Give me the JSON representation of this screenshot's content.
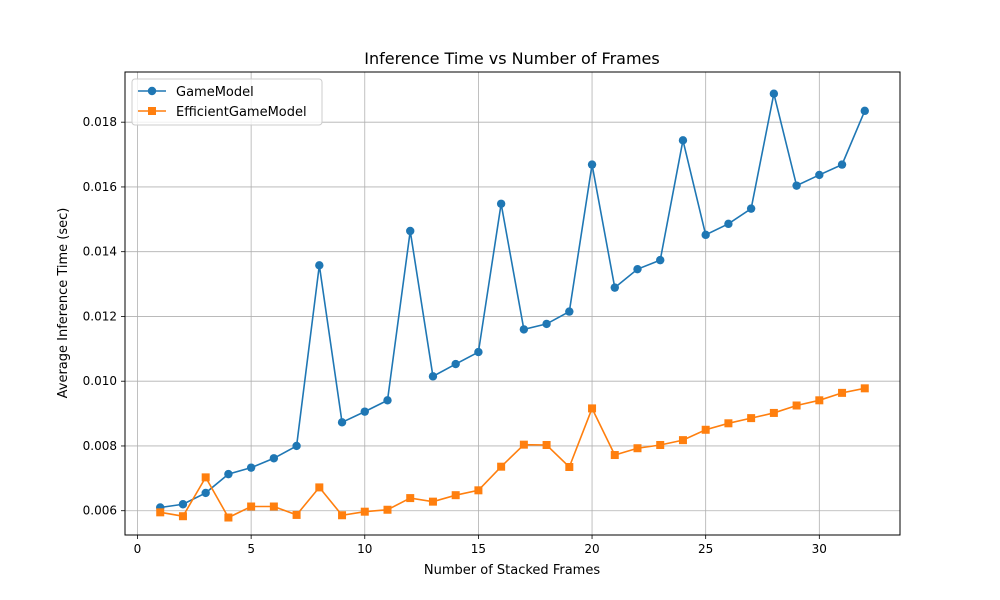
{
  "chart_data": {
    "type": "line",
    "title": "Inference Time vs Number of Frames",
    "xlabel": "Number of Stacked Frames",
    "ylabel": "Average Inference Time (sec)",
    "xlim": [
      -0.55,
      33.55
    ],
    "ylim": [
      0.00525,
      0.01955
    ],
    "xticks": [
      0,
      5,
      10,
      15,
      20,
      25,
      30
    ],
    "xtick_labels": [
      "0",
      "5",
      "10",
      "15",
      "20",
      "25",
      "30"
    ],
    "yticks": [
      0.006,
      0.008,
      0.01,
      0.012,
      0.014,
      0.016,
      0.018
    ],
    "ytick_labels": [
      "0.006",
      "0.008",
      "0.010",
      "0.012",
      "0.014",
      "0.016",
      "0.018"
    ],
    "grid": true,
    "legend_position": "top-left",
    "x": [
      1,
      2,
      3,
      4,
      5,
      6,
      7,
      8,
      9,
      10,
      11,
      12,
      13,
      14,
      15,
      16,
      17,
      18,
      19,
      20,
      21,
      22,
      23,
      24,
      25,
      26,
      27,
      28,
      29,
      30,
      31,
      32
    ],
    "series": [
      {
        "name": "GameModel",
        "color": "#1f77b4",
        "marker": "circle",
        "values": [
          0.0061,
          0.0062,
          0.00655,
          0.00713,
          0.00733,
          0.00762,
          0.008,
          0.01358,
          0.00873,
          0.00906,
          0.00941,
          0.01464,
          0.01015,
          0.01053,
          0.0109,
          0.01548,
          0.0116,
          0.01177,
          0.01215,
          0.01669,
          0.01289,
          0.01346,
          0.01374,
          0.01744,
          0.01452,
          0.01486,
          0.01533,
          0.01888,
          0.01604,
          0.01637,
          0.01669,
          0.01835
        ]
      },
      {
        "name": "EfficientGameModel",
        "color": "#ff7f0e",
        "marker": "square",
        "values": [
          0.00595,
          0.00583,
          0.00703,
          0.00579,
          0.00613,
          0.00613,
          0.00587,
          0.00672,
          0.00586,
          0.00597,
          0.00603,
          0.00639,
          0.00628,
          0.00648,
          0.00663,
          0.00736,
          0.00804,
          0.00803,
          0.00735,
          0.00916,
          0.00772,
          0.00793,
          0.00803,
          0.00818,
          0.0085,
          0.0087,
          0.00886,
          0.00902,
          0.00925,
          0.00941,
          0.00964,
          0.00978
        ]
      }
    ]
  }
}
